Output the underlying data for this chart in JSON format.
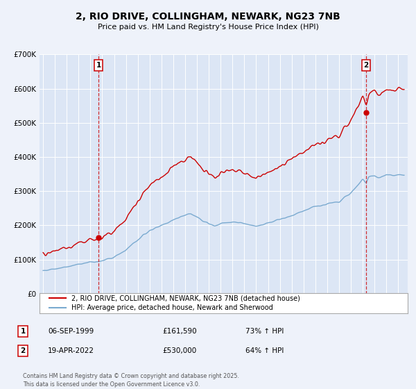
{
  "title": "2, RIO DRIVE, COLLINGHAM, NEWARK, NG23 7NB",
  "subtitle": "Price paid vs. HM Land Registry's House Price Index (HPI)",
  "bg_color": "#eef2fa",
  "plot_bg_color": "#dce6f5",
  "grid_color": "#ffffff",
  "red_color": "#cc0000",
  "blue_color": "#7aaad0",
  "ylim_max": 700000,
  "xlim_min": 1994.7,
  "xlim_max": 2025.8,
  "purchase1_year": 1999.68,
  "purchase1_value": 161590,
  "purchase2_year": 2022.29,
  "purchase2_value": 530000,
  "legend_line1": "2, RIO DRIVE, COLLINGHAM, NEWARK, NG23 7NB (detached house)",
  "legend_line2": "HPI: Average price, detached house, Newark and Sherwood",
  "annotation1_label": "1",
  "annotation1_date": "06-SEP-1999",
  "annotation1_price": "£161,590",
  "annotation1_hpi": "73% ↑ HPI",
  "annotation2_label": "2",
  "annotation2_date": "19-APR-2022",
  "annotation2_price": "£530,000",
  "annotation2_hpi": "64% ↑ HPI",
  "footnote": "Contains HM Land Registry data © Crown copyright and database right 2025.\nThis data is licensed under the Open Government Licence v3.0."
}
